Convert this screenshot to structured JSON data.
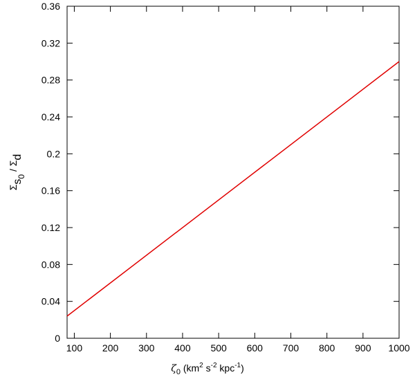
{
  "chart_data": {
    "type": "line",
    "xlabel": [
      "ζ",
      "0",
      " (km",
      "2",
      " s",
      "-2",
      " kpc",
      "-1",
      ")"
    ],
    "ylabel": [
      "Σ",
      "s",
      "0",
      " / Σ",
      "d"
    ],
    "x": [
      80,
      1000
    ],
    "series": [
      {
        "color": "#e00000",
        "values": [
          0.024,
          0.3
        ]
      }
    ],
    "xlim": [
      80,
      1000
    ],
    "xticks": [
      100,
      200,
      300,
      400,
      500,
      600,
      700,
      800,
      900,
      1000
    ],
    "ylim": [
      0,
      0.36
    ],
    "yticks": [
      0,
      0.04,
      0.08,
      0.12,
      0.16,
      0.2,
      0.24,
      0.28,
      0.32,
      0.36
    ],
    "grid": false
  }
}
